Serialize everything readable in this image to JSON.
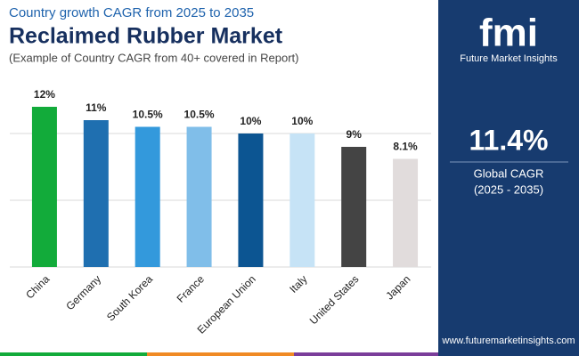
{
  "chart_data": {
    "type": "bar",
    "kicker": "Country growth CAGR from 2025 to 2035",
    "title": "Reclaimed Rubber Market",
    "subtitle": "(Example of Country CAGR from 40+ covered in Report)",
    "categories": [
      "China",
      "Germany",
      "South Korea",
      "France",
      "European Union",
      "Italy",
      "United States",
      "Japan"
    ],
    "values": [
      12,
      11,
      10.5,
      10.5,
      10,
      10,
      9,
      8.1
    ],
    "value_labels": [
      "12%",
      "11%",
      "10.5%",
      "10.5%",
      "10%",
      "10%",
      "9%",
      "8.1%"
    ],
    "colors": [
      "#12ab3a",
      "#1f6fb0",
      "#3399dc",
      "#80bee9",
      "#0c5592",
      "#c6e3f6",
      "#444444",
      "#e1dcdc"
    ],
    "ylim": [
      0,
      12
    ],
    "yticks": [
      0,
      5,
      10
    ],
    "grid": true
  },
  "sidebar": {
    "logo": "fmi",
    "brand": "Future Market Insights",
    "stat": "11.4%",
    "caption": "Global CAGR",
    "period": "(2025 - 2035)",
    "url": "www.futuremarketinsights.com"
  }
}
